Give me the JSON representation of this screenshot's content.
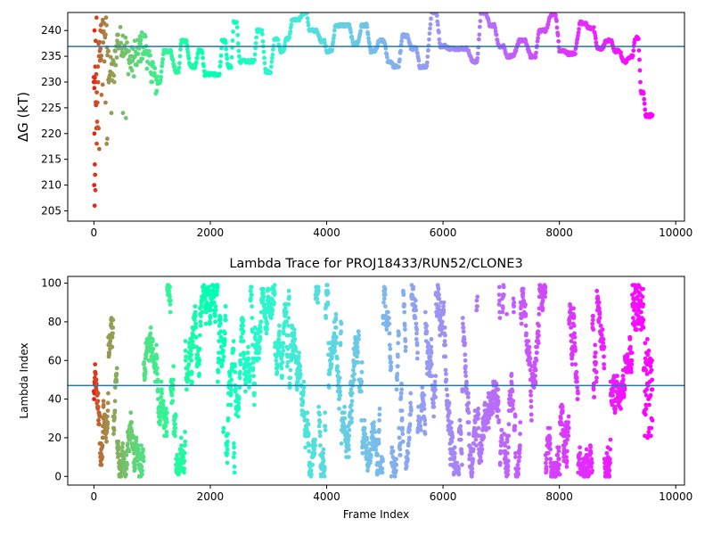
{
  "chart_data": [
    {
      "type": "scatter",
      "panel": "top",
      "title": "",
      "xlabel": "",
      "ylabel": "ΔG (kT)",
      "xlim": [
        -450,
        10150
      ],
      "ylim": [
        203.0,
        243.5
      ],
      "xticks": [
        "0",
        "2000",
        "4000",
        "6000",
        "8000",
        "10000"
      ],
      "xtick_values": [
        0,
        2000,
        4000,
        6000,
        8000,
        10000
      ],
      "yticks": [
        "205",
        "210",
        "215",
        "220",
        "225",
        "230",
        "235",
        "240"
      ],
      "ytick_values": [
        205,
        210,
        215,
        220,
        225,
        230,
        235,
        240
      ],
      "hline": 236.9,
      "hline_color": "#1f77b4",
      "colormap": "rainbow",
      "color_by": "frame index (red at start → violet at end)",
      "n_frames": 9600,
      "trace_knots": [
        [
          0,
          230
        ],
        [
          40,
          220
        ],
        [
          80,
          236
        ],
        [
          150,
          240
        ],
        [
          250,
          232
        ],
        [
          400,
          238
        ],
        [
          600,
          234
        ],
        [
          800,
          237
        ],
        [
          950,
          233
        ],
        [
          1050,
          230
        ],
        [
          1200,
          236
        ],
        [
          1400,
          232
        ],
        [
          1500,
          238
        ],
        [
          1650,
          233
        ],
        [
          1800,
          236
        ],
        [
          1900,
          231.5
        ],
        [
          2100,
          231.5
        ],
        [
          2200,
          238
        ],
        [
          2300,
          233
        ],
        [
          2400,
          241.5
        ],
        [
          2500,
          234
        ],
        [
          2700,
          234
        ],
        [
          2800,
          240
        ],
        [
          2950,
          232
        ],
        [
          3100,
          238.5
        ],
        [
          3200,
          236
        ],
        [
          3300,
          238.5
        ],
        [
          3400,
          242
        ],
        [
          3600,
          243.5
        ],
        [
          3700,
          240
        ],
        [
          3900,
          238
        ],
        [
          4000,
          236
        ],
        [
          4150,
          241
        ],
        [
          4300,
          241
        ],
        [
          4450,
          237.5
        ],
        [
          4600,
          241
        ],
        [
          4750,
          236
        ],
        [
          4900,
          238
        ],
        [
          5050,
          234
        ],
        [
          5150,
          233
        ],
        [
          5300,
          239
        ],
        [
          5450,
          236.5
        ],
        [
          5600,
          233
        ],
        [
          5800,
          243.5
        ],
        [
          5950,
          237
        ],
        [
          6100,
          236.5
        ],
        [
          6300,
          236.5
        ],
        [
          6500,
          234
        ],
        [
          6650,
          243.5
        ],
        [
          6800,
          241
        ],
        [
          6950,
          237
        ],
        [
          7100,
          235
        ],
        [
          7300,
          238
        ],
        [
          7500,
          235
        ],
        [
          7650,
          240
        ],
        [
          7850,
          243
        ],
        [
          8000,
          236
        ],
        [
          8150,
          235.5
        ],
        [
          8350,
          241.5
        ],
        [
          8500,
          240.5
        ],
        [
          8650,
          236.5
        ],
        [
          8800,
          238
        ],
        [
          8950,
          236
        ],
        [
          9100,
          234
        ],
        [
          9200,
          235
        ],
        [
          9300,
          238.5
        ],
        [
          9400,
          228
        ],
        [
          9480,
          223.5
        ],
        [
          9600,
          223.5
        ]
      ],
      "scatter_start": [
        [
          0,
          230
        ],
        [
          5,
          210
        ],
        [
          8,
          220
        ],
        [
          10,
          240
        ],
        [
          12,
          206
        ],
        [
          15,
          214
        ],
        [
          18,
          230
        ],
        [
          20,
          212
        ],
        [
          25,
          209
        ],
        [
          30,
          238
        ],
        [
          35,
          225.5
        ],
        [
          40,
          231.5
        ],
        [
          45,
          242.5
        ],
        [
          50,
          228
        ],
        [
          60,
          226
        ],
        [
          70,
          233
        ],
        [
          80,
          221
        ],
        [
          90,
          217
        ],
        [
          100,
          236
        ],
        [
          110,
          240
        ],
        [
          120,
          241
        ],
        [
          130,
          227.5
        ],
        [
          150,
          229.5
        ],
        [
          180,
          234
        ],
        [
          200,
          226
        ],
        [
          220,
          218
        ],
        [
          230,
          219
        ],
        [
          250,
          236
        ],
        [
          300,
          224
        ],
        [
          350,
          230
        ],
        [
          400,
          238
        ],
        [
          500,
          224
        ],
        [
          550,
          223
        ],
        [
          600,
          236
        ],
        [
          650,
          235
        ],
        [
          700,
          238
        ],
        [
          800,
          234
        ],
        [
          900,
          237
        ],
        [
          1000,
          230
        ]
      ]
    },
    {
      "type": "scatter",
      "panel": "bottom",
      "title": "Lambda Trace for PROJ18433/RUN52/CLONE3",
      "xlabel": "Frame Index",
      "ylabel": "Lambda Index",
      "xlim": [
        -450,
        10150
      ],
      "ylim": [
        -4.5,
        103.5
      ],
      "xticks": [
        "0",
        "2000",
        "4000",
        "6000",
        "8000",
        "10000"
      ],
      "xtick_values": [
        0,
        2000,
        4000,
        6000,
        8000,
        10000
      ],
      "yticks": [
        "0",
        "20",
        "40",
        "60",
        "80",
        "100"
      ],
      "ytick_values": [
        0,
        20,
        40,
        60,
        80,
        100
      ],
      "hline": 47,
      "hline_color": "#1f77b4",
      "colormap": "rainbow",
      "color_by": "frame index (red at start → violet at end)",
      "n_frames": 9600,
      "lambda_range": [
        0,
        99
      ],
      "late_segment": {
        "x_start": 9250,
        "x_end": 9600,
        "upper_band": [
          75,
          99
        ],
        "tail_band": [
          20,
          72
        ]
      }
    }
  ]
}
